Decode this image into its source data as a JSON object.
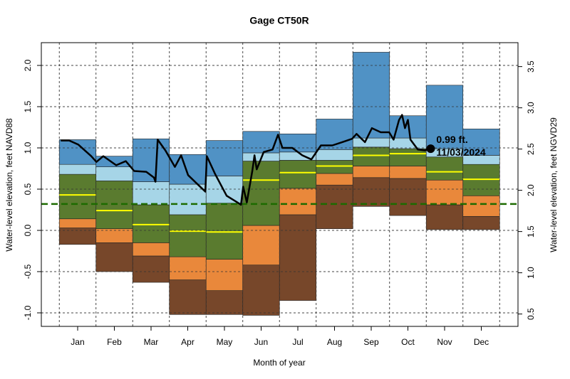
{
  "chart_data": {
    "type": "percentile-bands",
    "title": "Gage CT50R",
    "xlabel": "Month of year",
    "ylabel": "Water-level elevation, feet NAVD88",
    "y2label": "Water-level elevation, feet NGVD29",
    "xlim": [
      -0.49,
      12.5
    ],
    "xticks": [
      {
        "value": 0.5,
        "label": "Jan"
      },
      {
        "value": 1.5,
        "label": "Feb"
      },
      {
        "value": 2.5,
        "label": "Mar"
      },
      {
        "value": 3.5,
        "label": "Apr"
      },
      {
        "value": 4.5,
        "label": "May"
      },
      {
        "value": 5.5,
        "label": "Jun"
      },
      {
        "value": 6.5,
        "label": "Jul"
      },
      {
        "value": 7.5,
        "label": "Aug"
      },
      {
        "value": 8.5,
        "label": "Sep"
      },
      {
        "value": 9.5,
        "label": "Oct"
      },
      {
        "value": 10.5,
        "label": "Nov"
      },
      {
        "value": 11.5,
        "label": "Dec"
      }
    ],
    "x_gridlines": [
      0,
      1,
      2,
      3,
      4,
      5,
      6,
      7,
      8,
      9,
      10,
      11,
      12
    ],
    "ylim": [
      -1.164,
      2.276
    ],
    "yticks": [
      {
        "value": -1,
        "label": "-1.0"
      },
      -0.5,
      {
        "value": 0,
        "label": "0.0"
      },
      0.5,
      {
        "value": 1,
        "label": "1.0"
      },
      1.5,
      {
        "value": 2,
        "label": "2.0"
      }
    ],
    "y2lim": [
      0.35,
      3.79
    ],
    "y2ticks": [
      0.5,
      {
        "value": 1,
        "label": "1.0"
      },
      1.5,
      {
        "value": 2,
        "label": "2.0"
      },
      2.5,
      {
        "value": 3,
        "label": "3.0"
      },
      3.5
    ],
    "grid": true,
    "base": [
      -0.17,
      -0.5,
      -0.63,
      -1.02,
      -1.02,
      -1.03,
      -0.85,
      0.02,
      0.29,
      0.18,
      0.01,
      0.01
    ],
    "series": [
      {
        "color": "#77472a",
        "values": [
          0.03,
          -0.15,
          -0.31,
          -0.6,
          -0.73,
          -0.42,
          0.19,
          0.55,
          0.64,
          0.63,
          0.31,
          0.17
        ]
      },
      {
        "color": "#e9883b",
        "values": [
          0.14,
          0.02,
          -0.15,
          -0.32,
          -0.35,
          0.06,
          0.51,
          0.69,
          0.78,
          0.78,
          0.61,
          0.42
        ]
      },
      {
        "color": "#5a7b2f",
        "values": [
          0.68,
          0.6,
          0.31,
          0.19,
          0.33,
          0.84,
          0.85,
          0.85,
          1.01,
          0.99,
          0.89,
          0.8
        ]
      },
      {
        "color": "#a6d5e7",
        "values": [
          0.8,
          0.77,
          0.59,
          0.56,
          0.66,
          0.94,
          0.95,
          0.98,
          1.12,
          1.12,
          0.99,
          0.91
        ]
      },
      {
        "color": "#5092c5",
        "values": [
          1.1,
          0.9,
          1.11,
          0.92,
          1.09,
          1.2,
          1.17,
          1.35,
          2.16,
          1.39,
          1.76,
          1.23
        ]
      }
    ],
    "median": {
      "color": "#ffff00",
      "values": [
        0.43,
        0.24,
        0.07,
        -0.01,
        -0.02,
        0.61,
        0.7,
        0.78,
        0.91,
        0.93,
        0.71,
        0.62
      ]
    },
    "reference_line": {
      "value": 0.32,
      "color": "#1d6b00"
    },
    "line": {
      "color": "#000000",
      "x": [
        0.04,
        0.27,
        0.52,
        0.87,
        1.01,
        1.2,
        1.55,
        1.81,
        2.04,
        2.37,
        2.58,
        2.62,
        2.68,
        2.89,
        3.15,
        3.32,
        3.51,
        3.79,
        3.98,
        4.02,
        4.25,
        4.56,
        4.85,
        4.95,
        5.01,
        5.11,
        5.26,
        5.32,
        5.38,
        5.57,
        5.81,
        5.96,
        6.08,
        6.35,
        6.62,
        6.87,
        7.13,
        7.44,
        7.71,
        7.98,
        8.1,
        8.33,
        8.52,
        8.76,
        8.99,
        9.11,
        9.26,
        9.34,
        9.42,
        9.5,
        9.57,
        9.77,
        9.96,
        10.12
      ],
      "values": [
        1.09,
        1.09,
        1.04,
        0.9,
        0.83,
        0.9,
        0.79,
        0.84,
        0.72,
        0.71,
        0.64,
        0.59,
        1.1,
        0.97,
        0.77,
        0.91,
        0.67,
        0.55,
        0.47,
        0.9,
        0.68,
        0.42,
        0.34,
        0.31,
        0.53,
        0.34,
        0.72,
        0.91,
        0.74,
        0.95,
        0.98,
        1.16,
        1.0,
        1.0,
        0.91,
        0.86,
        1.03,
        1.03,
        1.07,
        1.11,
        1.17,
        1.07,
        1.24,
        1.19,
        1.19,
        1.1,
        1.34,
        1.4,
        1.24,
        1.34,
        1.1,
        0.98,
        0.97,
        0.99
      ]
    },
    "annotation": {
      "x": 10.12,
      "y": 0.99,
      "lines": [
        "0.99 ft.",
        "11/03/2024"
      ]
    }
  }
}
